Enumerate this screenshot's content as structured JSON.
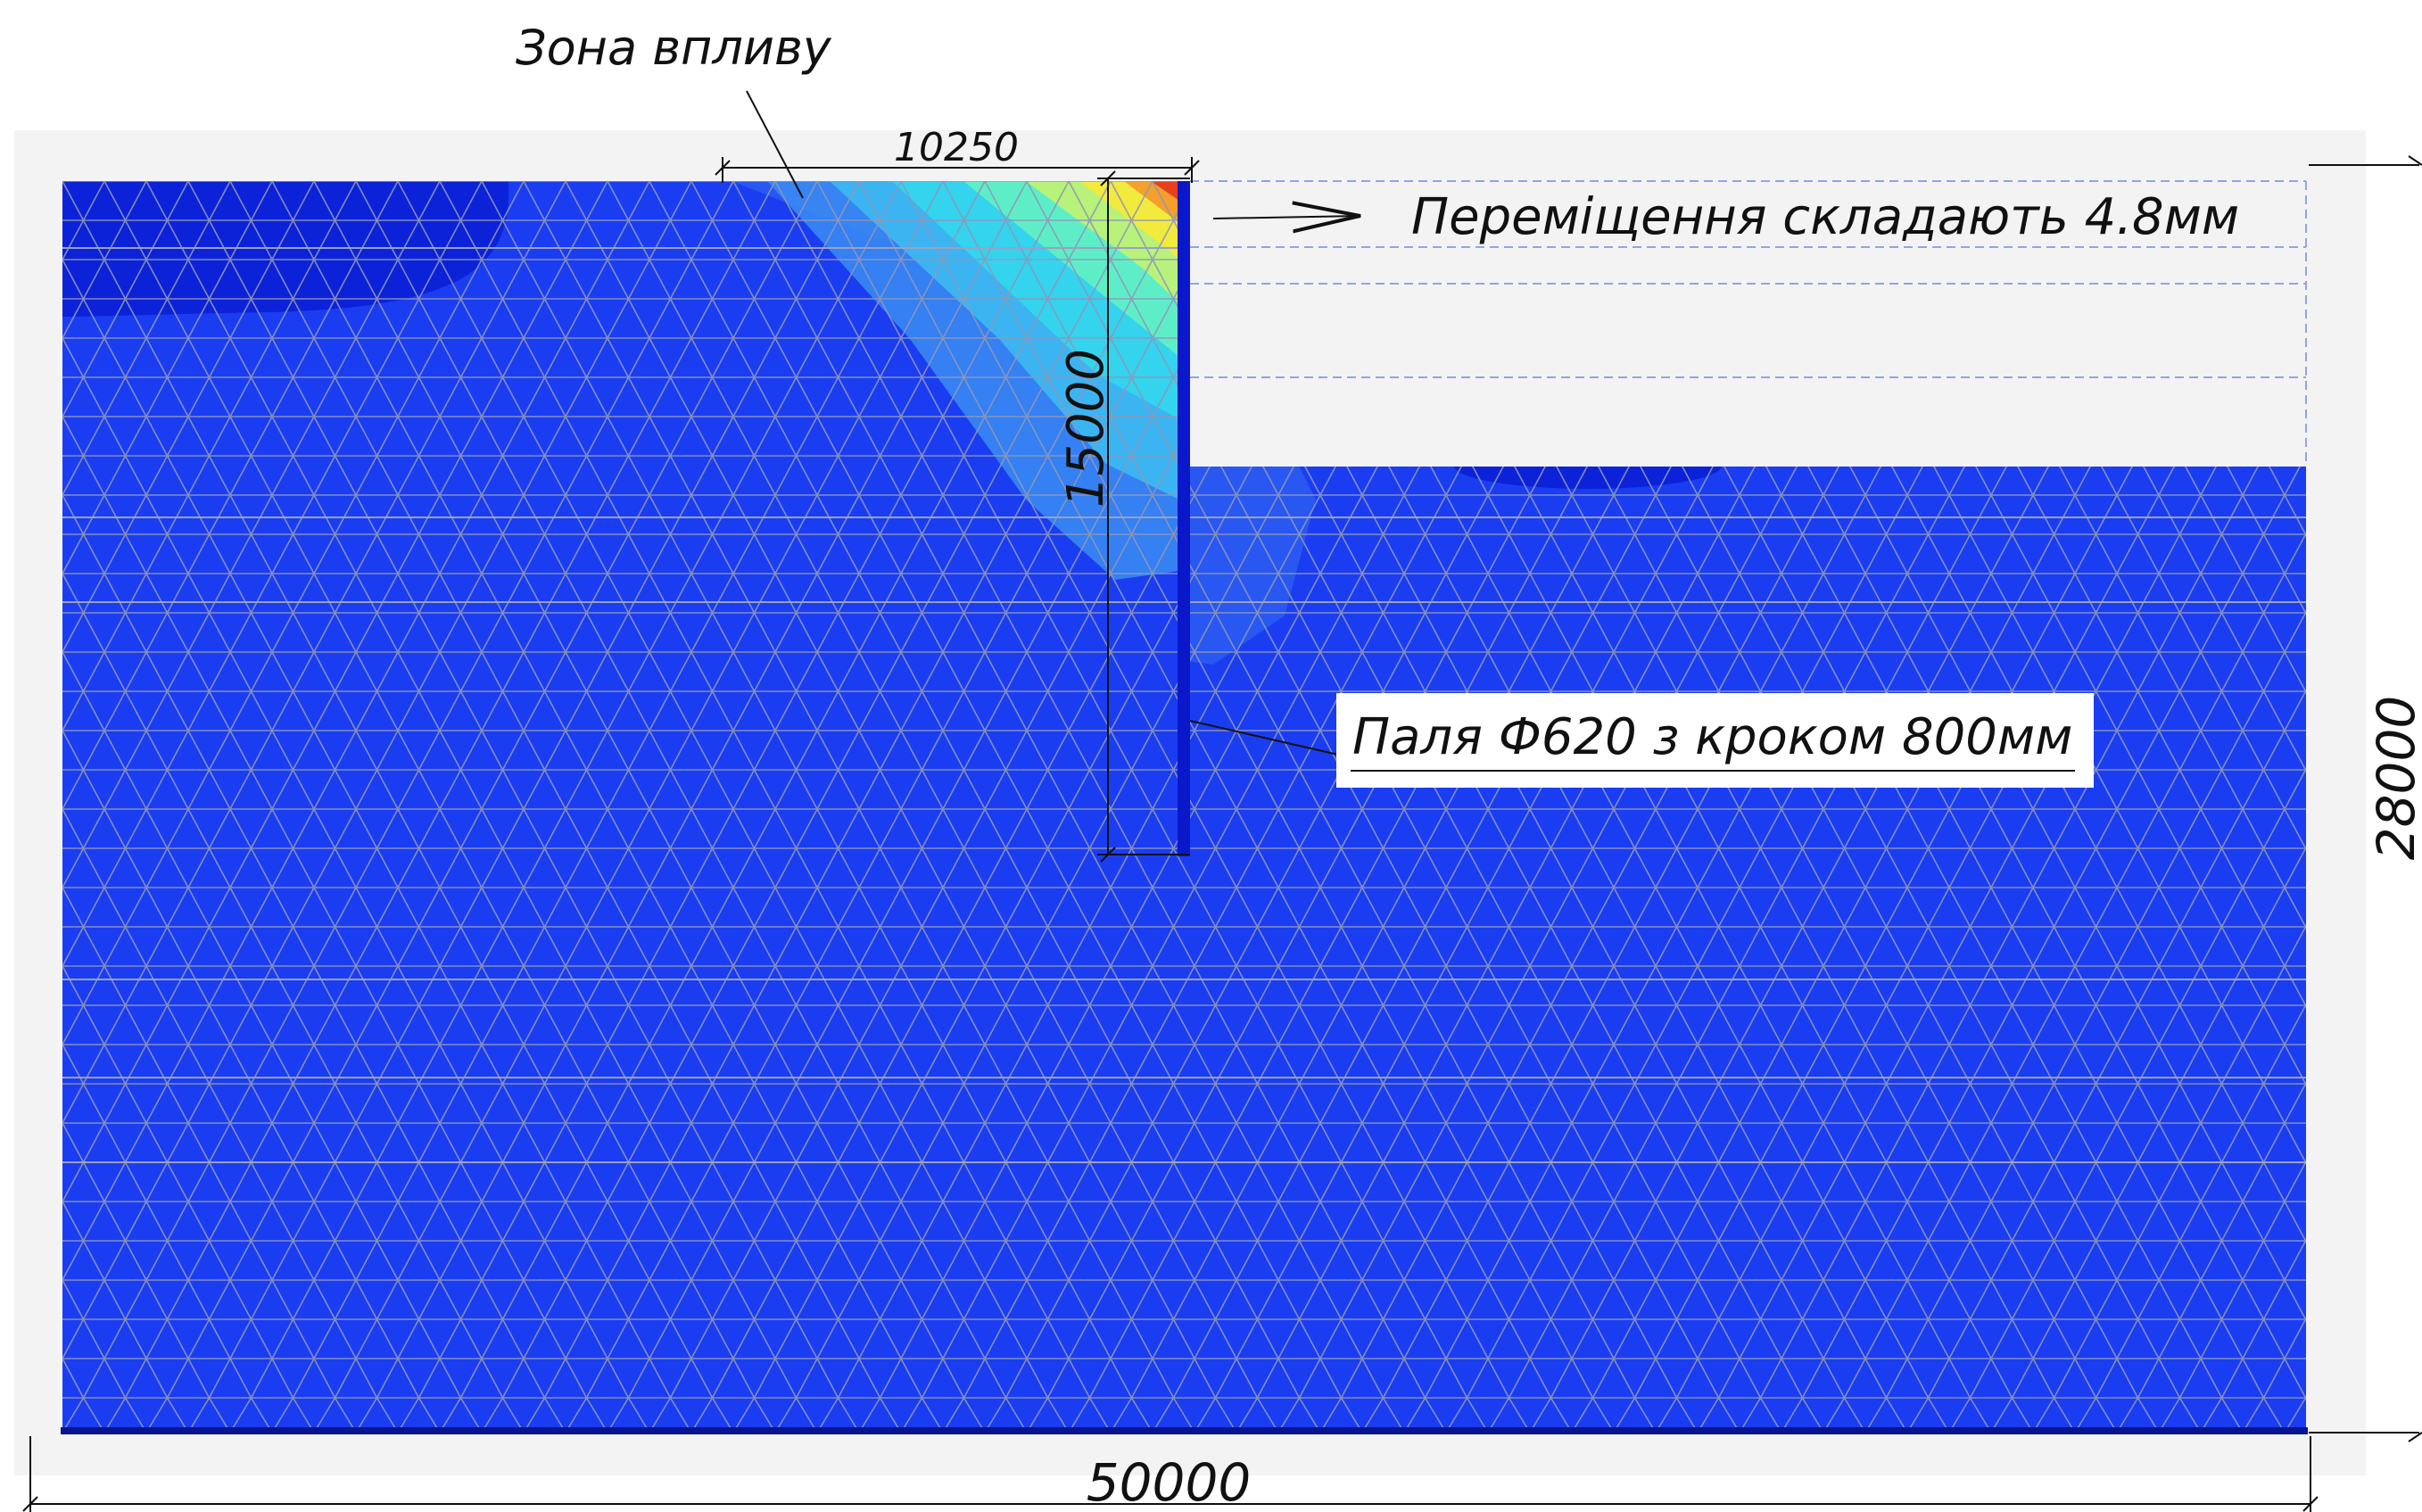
{
  "labels": {
    "influence_zone": "Зона впливу",
    "displacement_note": "Переміщення складають 4.8мм",
    "pile_note": "Паля Ф620 з кроком 800мм"
  },
  "dimensions": {
    "zone_width": "10250",
    "pile_depth": "15000",
    "model_height": "28000",
    "model_width": "50000"
  },
  "colors": {
    "soil": "#1a3df2",
    "soil_dark": "#0c1fd6",
    "mesh": "#8f97b8",
    "pile": "#0b18c9",
    "excavation_bg": "#f2f2f2",
    "contour_max": "#e8401c",
    "contour_mid": "#f5e83c",
    "contour_low": "#2fe0e8"
  }
}
